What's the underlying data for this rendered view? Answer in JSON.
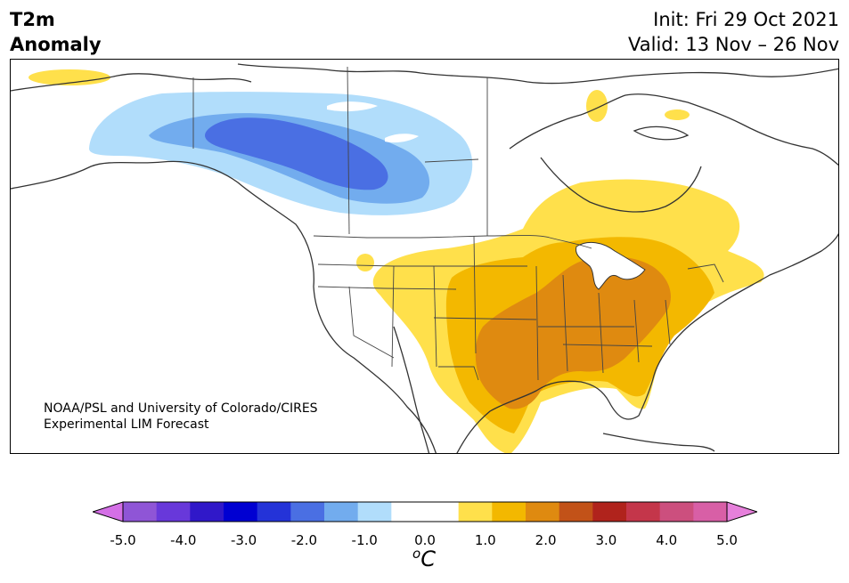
{
  "header": {
    "variable": "T2m",
    "subtitle": "Anomaly",
    "init": "Init: Fri 29 Oct 2021",
    "valid": "Valid: 13 Nov – 26 Nov"
  },
  "credit": {
    "line1": "NOAA/PSL and University of Colorado/CIRES",
    "line2": "Experimental LIM Forecast"
  },
  "colorbar": {
    "units_base": "C",
    "units_sup": "o",
    "tick_labels": [
      "-5.0",
      "-4.0",
      "-3.0",
      "-2.0",
      "-1.0",
      "0.0",
      "1.0",
      "2.0",
      "3.0",
      "4.0",
      "5.0"
    ],
    "colors": [
      "#8f55d6",
      "#6838da",
      "#3018c9",
      "#0000d2",
      "#2433d8",
      "#4a6fe3",
      "#72acee",
      "#b1ddfb",
      "#ffffff",
      "#ffffff",
      "#ffe04b",
      "#f3b800",
      "#df8a10",
      "#c25218",
      "#b0231c",
      "#c4364a",
      "#cc4f7e",
      "#d85fa6"
    ],
    "under_color": "#d46fe6",
    "over_color": "#e680db"
  },
  "map": {
    "region": "North America",
    "anomaly_regions": [
      {
        "name": "cold-core",
        "level": "-1.5 to -2.0"
      },
      {
        "name": "cold-mid",
        "level": "-1.0 to -1.5"
      },
      {
        "name": "cold-outer",
        "level": "-0.5 to -1.0"
      },
      {
        "name": "warm-outer",
        "level": "0.5 to 1.0"
      },
      {
        "name": "warm-mid",
        "level": "1.0 to 1.5"
      },
      {
        "name": "warm-core",
        "level": "1.5 to 2.0"
      }
    ]
  }
}
